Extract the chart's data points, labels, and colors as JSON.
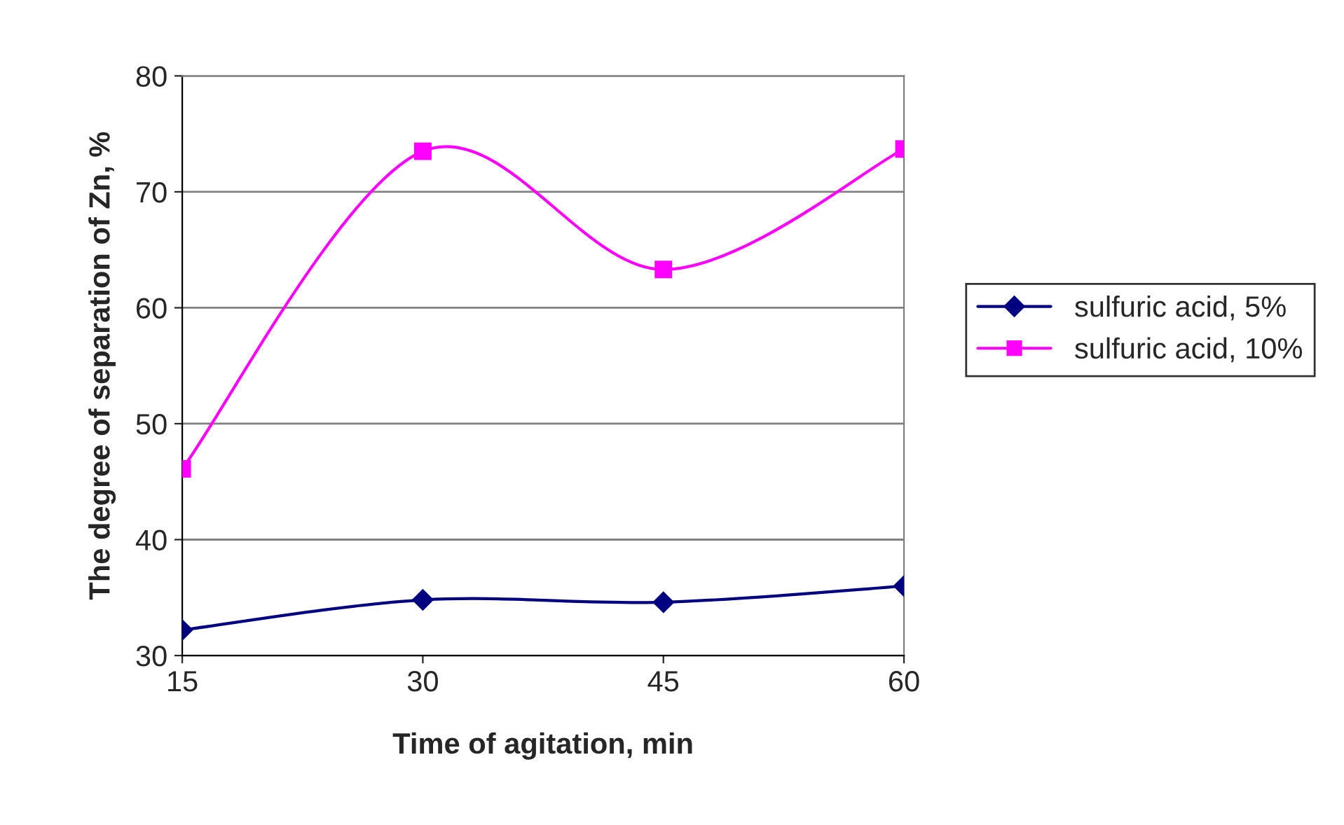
{
  "chart_data": {
    "type": "line",
    "xlabel": "Time of agitation, min",
    "ylabel": "The degree of separation of Zn, %",
    "x": [
      15,
      30,
      45,
      60
    ],
    "series": [
      {
        "name": "sulfuric acid, 5%",
        "color": "#000080",
        "marker": "diamond",
        "values": [
          32.2,
          34.8,
          34.6,
          36.0
        ]
      },
      {
        "name": "sulfuric acid, 10%",
        "color": "#ff00ff",
        "marker": "square",
        "values": [
          46.1,
          73.5,
          63.3,
          73.7
        ]
      }
    ],
    "xlim": [
      15,
      60
    ],
    "xticks": [
      15,
      30,
      45,
      60
    ],
    "ylim": [
      30,
      80
    ],
    "yticks": [
      30,
      40,
      50,
      60,
      70,
      80
    ],
    "grid": "y",
    "legend": "right"
  }
}
